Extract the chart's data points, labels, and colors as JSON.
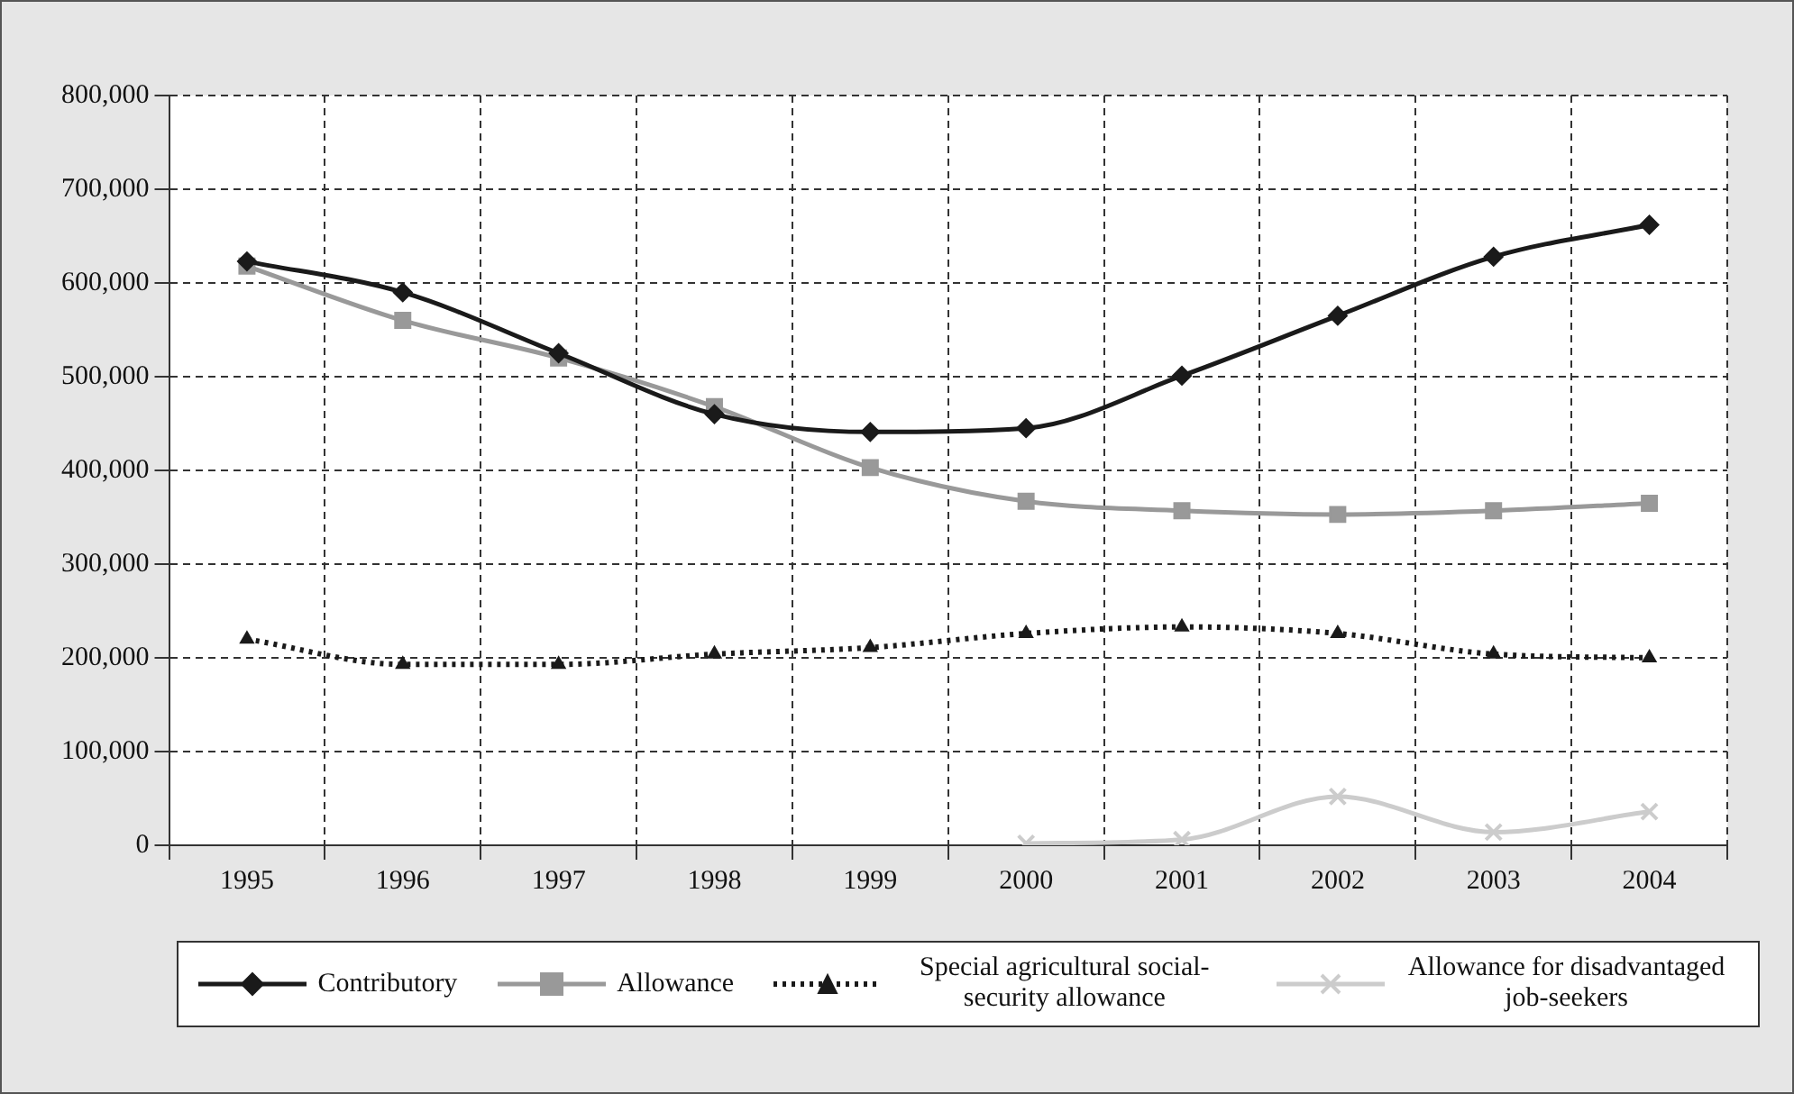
{
  "chart_data": {
    "type": "line",
    "categories": [
      "1995",
      "1996",
      "1997",
      "1998",
      "1999",
      "2000",
      "2001",
      "2002",
      "2003",
      "2004"
    ],
    "series": [
      {
        "name": "Contributory",
        "color": "#1a1a1a",
        "marker": "diamond",
        "line_style": "solid",
        "values": [
          623000,
          590000,
          525000,
          460000,
          441000,
          445000,
          501000,
          565000,
          628000,
          662000
        ]
      },
      {
        "name": "Allowance",
        "color": "#999999",
        "marker": "square",
        "line_style": "solid",
        "values": [
          618000,
          560000,
          520000,
          468000,
          403000,
          367000,
          357000,
          353000,
          357000,
          365000
        ]
      },
      {
        "name": "Special agricultural social-security allowance",
        "color": "#1a1a1a",
        "marker": "triangle",
        "line_style": "dotted",
        "values": [
          220000,
          193000,
          193000,
          204000,
          211000,
          226000,
          233000,
          226000,
          204000,
          200000
        ]
      },
      {
        "name": "Allowance for disadvantaged job-seekers",
        "color": "#cccccc",
        "marker": "cross",
        "line_style": "solid",
        "values": [
          null,
          null,
          null,
          null,
          null,
          2000,
          6000,
          52000,
          14000,
          36000
        ]
      }
    ],
    "ylim": [
      0,
      800000
    ],
    "yticks": [
      0,
      {
        "value": 100000,
        "label": "100,000"
      },
      {
        "value": 200000,
        "label": "200,000"
      },
      {
        "value": 300000,
        "label": "300,000"
      },
      {
        "value": 400000,
        "label": "400,000"
      },
      {
        "value": 500000,
        "label": "500,000"
      },
      {
        "value": 600000,
        "label": "600,000"
      },
      {
        "value": 700000,
        "label": "700,000"
      },
      {
        "value": 800000,
        "label": "800,000"
      }
    ],
    "grid": true,
    "legend": "bottom"
  }
}
